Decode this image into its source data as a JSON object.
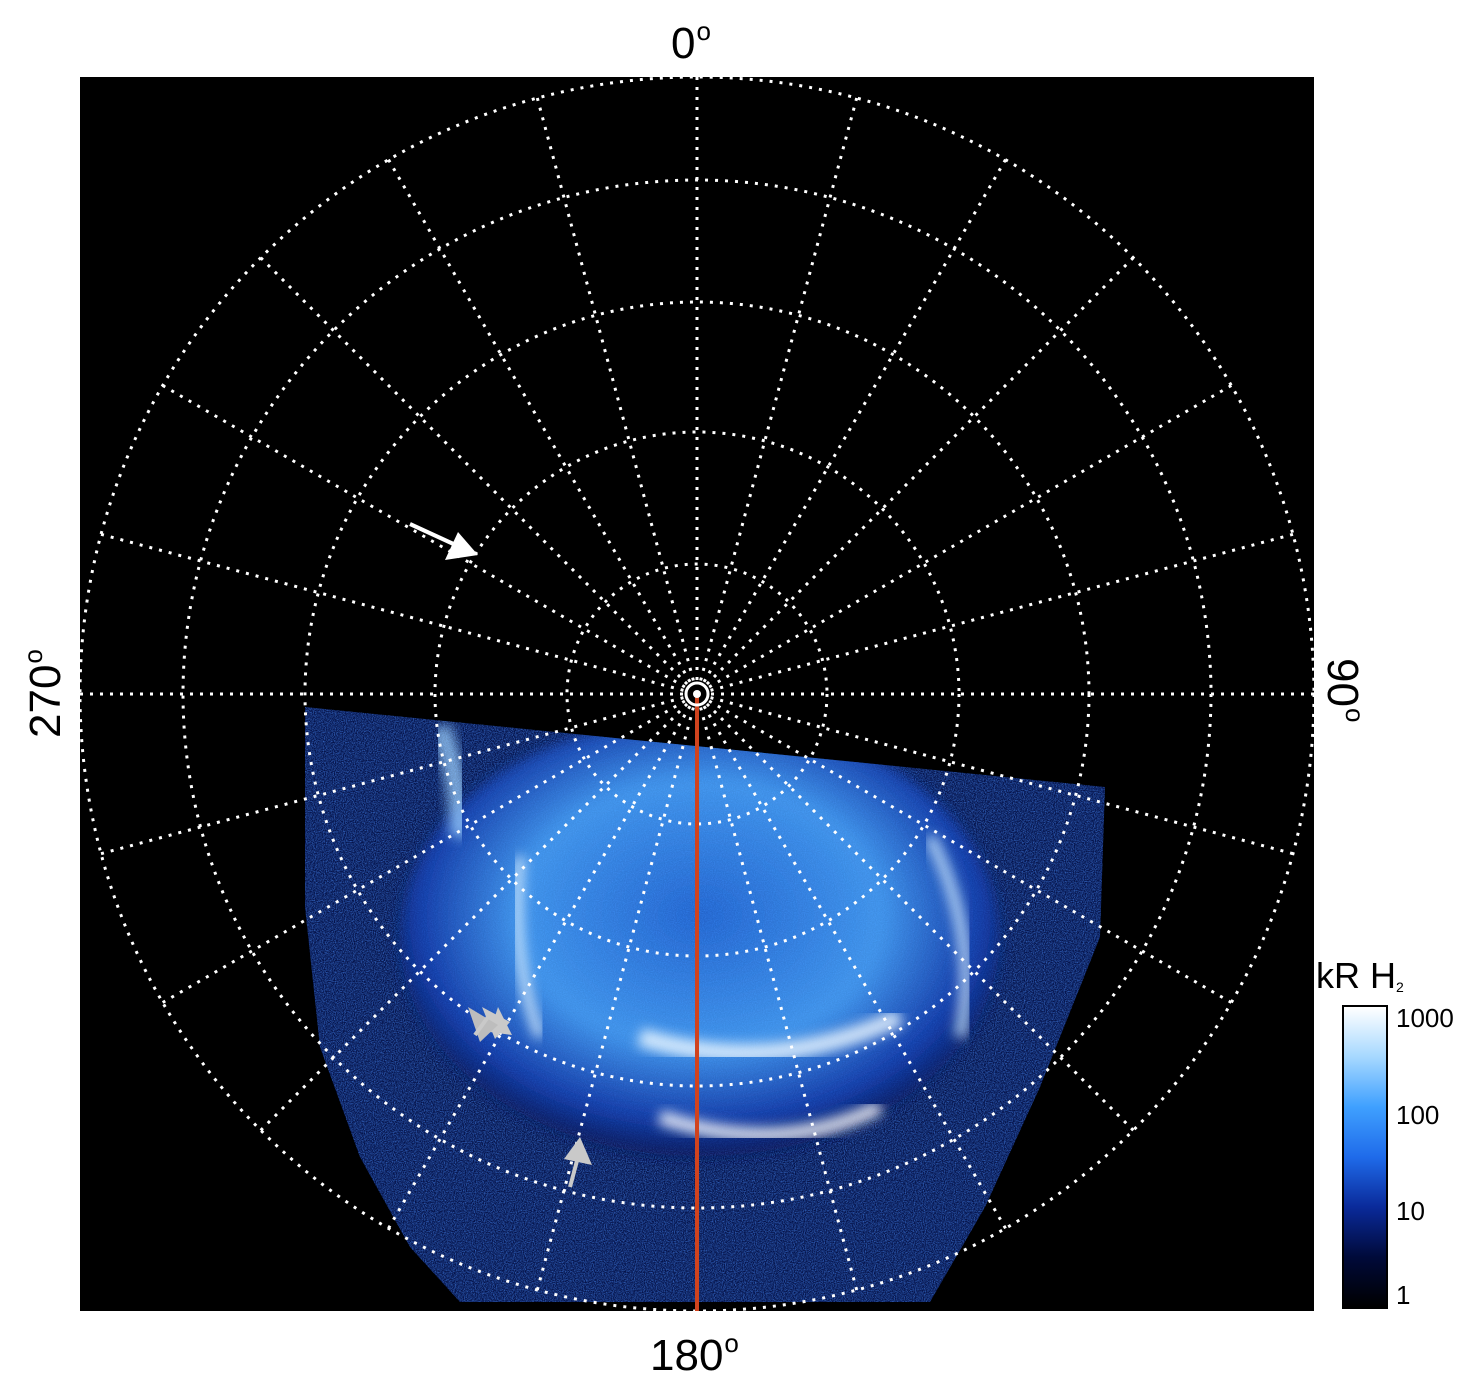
{
  "labels": {
    "top": "0",
    "bottom": "180",
    "left": "270",
    "right": "90",
    "degree_symbol": "o"
  },
  "colorbar": {
    "title": "kR H",
    "title_subscript": "2",
    "ticks": [
      "1000",
      "100",
      "10",
      "1"
    ],
    "colors": [
      "#000000",
      "#000a3a",
      "#0a2a9a",
      "#1f6bea",
      "#3fa0ff",
      "#a6d8ff",
      "#ffffff"
    ]
  },
  "colors": {
    "background": "#000000",
    "grid": "#ffffff",
    "meridian_line": "#d0431e",
    "arrow_white": "#ffffff",
    "arrow_gray": "#c9c9c9"
  }
}
